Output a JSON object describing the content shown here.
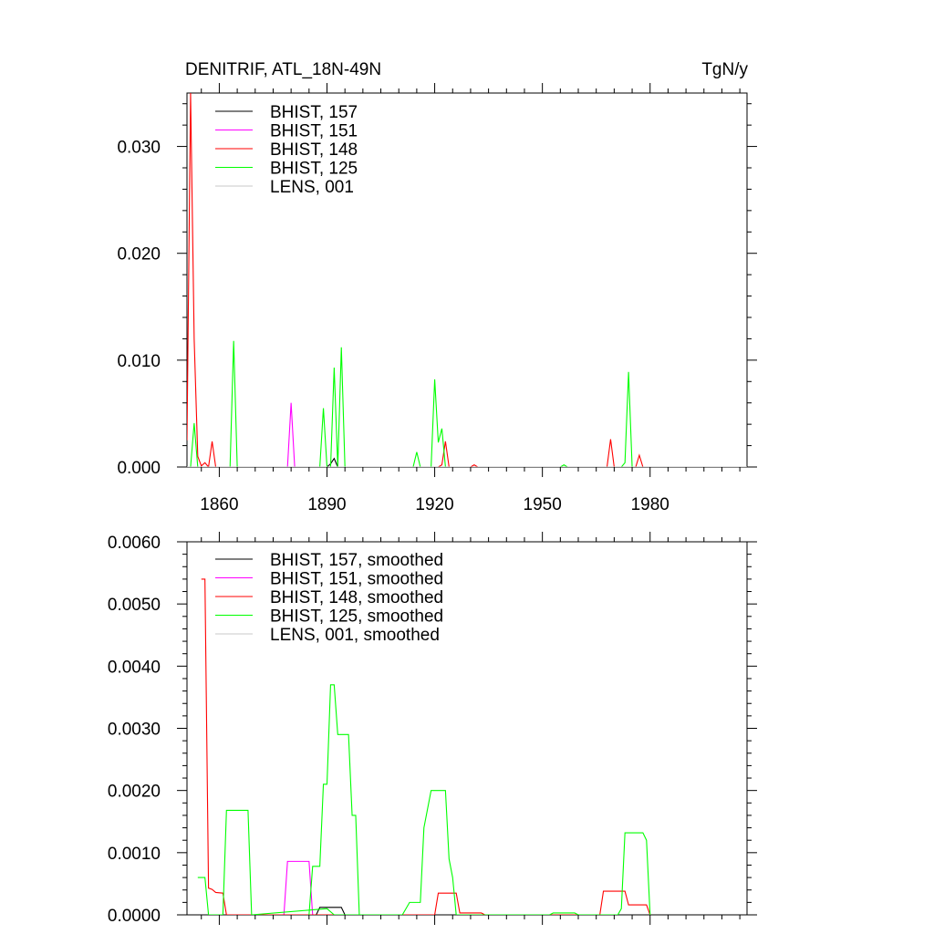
{
  "colors": {
    "BHIST_157": "#000000",
    "BHIST_151": "#ff00ff",
    "BHIST_148": "#ff0000",
    "BHIST_125": "#00ff00",
    "LENS_001": "#c8c8c8"
  },
  "chart_data": [
    {
      "type": "line",
      "title": "DENITRIF, ATL_18N-49N",
      "units": "TgN/y",
      "xlim": [
        1851,
        2007
      ],
      "ylim": [
        0,
        0.035
      ],
      "xticks": [
        1860,
        1890,
        1920,
        1950,
        1980
      ],
      "xtick_labels": [
        "1860",
        "1890",
        "1920",
        "1950",
        "1980"
      ],
      "yticks": [
        0,
        0.01,
        0.02,
        0.03
      ],
      "ytick_labels": [
        "0.000",
        "0.010",
        "0.020",
        "0.030"
      ],
      "legend_position": "top-left",
      "series": [
        {
          "name": "BHIST, 157",
          "color_key": "BHIST_157",
          "points": [
            [
              1851,
              0
            ],
            [
              1890,
              0
            ],
            [
              1891,
              0.0003
            ],
            [
              1892,
              0.0008
            ],
            [
              1893,
              0
            ],
            [
              1923,
              0
            ],
            [
              1924,
              0
            ],
            [
              2007,
              0
            ]
          ]
        },
        {
          "name": "BHIST, 151",
          "color_key": "BHIST_151",
          "points": [
            [
              1851,
              0
            ],
            [
              1879,
              0
            ],
            [
              1880,
              0.006
            ],
            [
              1881,
              0
            ],
            [
              2007,
              0
            ]
          ]
        },
        {
          "name": "BHIST, 148",
          "color_key": "BHIST_148",
          "points": [
            [
              1851,
              0.0025
            ],
            [
              1852,
              0.035
            ],
            [
              1853,
              0.012
            ],
            [
              1854,
              0.001
            ],
            [
              1855,
              0.0001
            ],
            [
              1856,
              0.0004
            ],
            [
              1857,
              0
            ],
            [
              1858,
              0.0024
            ],
            [
              1859,
              0
            ],
            [
              1921,
              0
            ],
            [
              1922,
              0.0002
            ],
            [
              1923,
              0.0024
            ],
            [
              1924,
              0
            ],
            [
              1930,
              0
            ],
            [
              1931,
              0.0002
            ],
            [
              1932,
              0
            ],
            [
              1968,
              0
            ],
            [
              1969,
              0.0026
            ],
            [
              1970,
              0
            ],
            [
              1976,
              0
            ],
            [
              1977,
              0.0011
            ],
            [
              1978,
              0
            ],
            [
              2007,
              0
            ]
          ]
        },
        {
          "name": "BHIST, 125",
          "color_key": "BHIST_125",
          "points": [
            [
              1851,
              0
            ],
            [
              1852,
              0
            ],
            [
              1853,
              0.0041
            ],
            [
              1854,
              0
            ],
            [
              1863,
              0
            ],
            [
              1864,
              0.0118
            ],
            [
              1865,
              0
            ],
            [
              1888,
              0
            ],
            [
              1889,
              0.0055
            ],
            [
              1890,
              0
            ],
            [
              1891,
              0
            ],
            [
              1892,
              0.0093
            ],
            [
              1893,
              0
            ],
            [
              1894,
              0.0112
            ],
            [
              1895,
              0
            ],
            [
              1914,
              0
            ],
            [
              1915,
              0.0014
            ],
            [
              1916,
              0
            ],
            [
              1919,
              0
            ],
            [
              1920,
              0.0082
            ],
            [
              1921,
              0.0023
            ],
            [
              1922,
              0.0036
            ],
            [
              1923,
              0
            ],
            [
              1955,
              0
            ],
            [
              1956,
              0.0002
            ],
            [
              1957,
              0
            ],
            [
              1972,
              0
            ],
            [
              1973,
              0.0004
            ],
            [
              1974,
              0.0089
            ],
            [
              1975,
              0
            ],
            [
              2007,
              0
            ]
          ]
        },
        {
          "name": "LENS, 001",
          "color_key": "LENS_001",
          "points": [
            [
              1851,
              0
            ],
            [
              2007,
              0
            ]
          ]
        }
      ]
    },
    {
      "type": "line",
      "title": "",
      "xlim": [
        1851,
        2007
      ],
      "ylim": [
        0,
        0.006
      ],
      "xticks": [
        1860,
        1890,
        1920,
        1950,
        1980
      ],
      "yticks": [
        0,
        0.001,
        0.002,
        0.003,
        0.004,
        0.005,
        0.006
      ],
      "ytick_labels": [
        "0.0000",
        "0.0010",
        "0.0020",
        "0.0030",
        "0.0040",
        "0.0050",
        "0.0060"
      ],
      "legend_position": "top-left",
      "series": [
        {
          "name": "BHIST, 157, smoothed",
          "color_key": "BHIST_157",
          "points": [
            [
              1887,
              0
            ],
            [
              1888,
              0.00012
            ],
            [
              1894,
              0.00012
            ],
            [
              1895,
              0
            ]
          ]
        },
        {
          "name": "BHIST, 151, smoothed",
          "color_key": "BHIST_151",
          "points": [
            [
              1873,
              0
            ],
            [
              1878,
              0
            ],
            [
              1879,
              0.00086
            ],
            [
              1885,
              0.00086
            ],
            [
              1886,
              0
            ]
          ]
        },
        {
          "name": "BHIST, 148, smoothed",
          "color_key": "BHIST_148",
          "points": [
            [
              1855,
              0.0054
            ],
            [
              1856,
              0.0054
            ],
            [
              1857,
              0.00043
            ],
            [
              1858,
              0.00041
            ],
            [
              1859,
              0.00036
            ],
            [
              1861,
              0.00035
            ],
            [
              1862,
              0
            ],
            [
              1920,
              0
            ],
            [
              1921,
              0.00035
            ],
            [
              1926,
              0.00035
            ],
            [
              1927,
              3e-05
            ],
            [
              1933,
              3e-05
            ],
            [
              1934,
              0
            ],
            [
              1966,
              0
            ],
            [
              1967,
              0.00038
            ],
            [
              1973,
              0.00038
            ],
            [
              1974,
              0.00016
            ],
            [
              1979,
              0.00016
            ],
            [
              1980,
              0
            ]
          ]
        },
        {
          "name": "BHIST, 125, smoothed",
          "color_key": "BHIST_125",
          "points": [
            [
              1854,
              0.0006
            ],
            [
              1856,
              0.0006
            ],
            [
              1857,
              0
            ],
            [
              1861,
              0
            ],
            [
              1862,
              0.00168
            ],
            [
              1868,
              0.00168
            ],
            [
              1869,
              0
            ],
            [
              1890,
              0.0001
            ],
            [
              1892,
              0
            ],
            [
              1900,
              0
            ],
            [
              1906,
              0
            ],
            [
              1911,
              0
            ],
            [
              1913,
              0.0002
            ],
            [
              1916,
              0.0002
            ],
            [
              1917,
              0.0014
            ],
            [
              1919,
              0.002
            ],
            [
              1923,
              0.002
            ],
            [
              1924,
              0.0009
            ],
            [
              1925,
              0.0006
            ],
            [
              1926,
              0
            ],
            [
              1952,
              0
            ],
            [
              1953,
              3e-05
            ],
            [
              1959,
              3e-05
            ],
            [
              1960,
              0
            ],
            [
              1971,
              0
            ],
            [
              1972,
              0.0001
            ],
            [
              1973,
              0.00132
            ],
            [
              1978,
              0.00132
            ],
            [
              1979,
              0.0012
            ],
            [
              1980,
              0
            ]
          ]
        },
        {
          "name": "BHIST, 125, smoothed (cont)",
          "color_key": "BHIST_125",
          "hide_legend": true,
          "points": [
            [
              1885,
              0
            ],
            [
              1886,
              0.00078
            ],
            [
              1888,
              0.00078
            ],
            [
              1889,
              0.0021
            ],
            [
              1890,
              0.0021
            ],
            [
              1891,
              0.0037
            ],
            [
              1892,
              0.0037
            ],
            [
              1893,
              0.0029
            ],
            [
              1896,
              0.0029
            ],
            [
              1897,
              0.0016
            ],
            [
              1898,
              0.0016
            ],
            [
              1899,
              0
            ]
          ]
        },
        {
          "name": "LENS, 001, smoothed",
          "color_key": "LENS_001",
          "points": []
        }
      ]
    }
  ]
}
